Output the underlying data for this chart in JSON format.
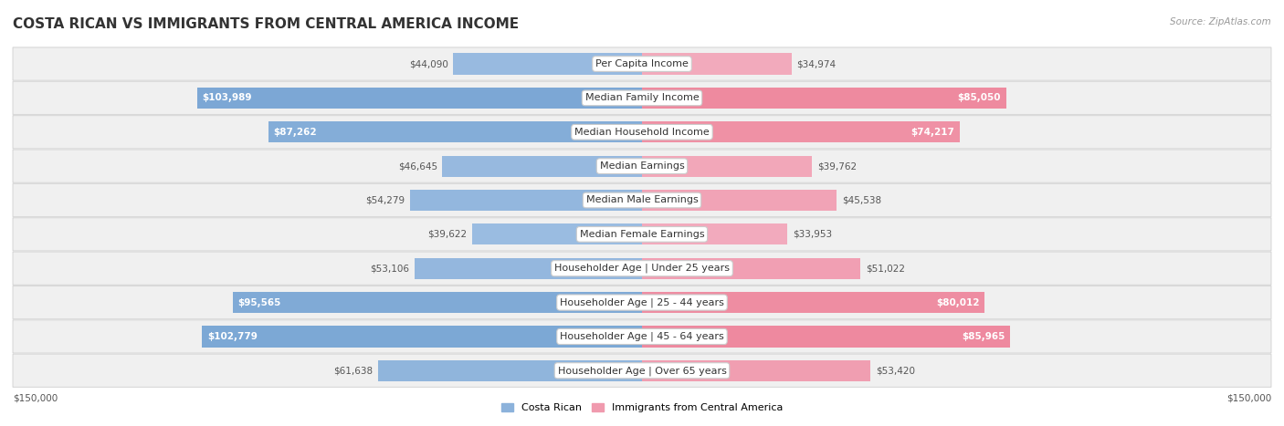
{
  "title": "COSTA RICAN VS IMMIGRANTS FROM CENTRAL AMERICA INCOME",
  "source": "Source: ZipAtlas.com",
  "categories": [
    "Per Capita Income",
    "Median Family Income",
    "Median Household Income",
    "Median Earnings",
    "Median Male Earnings",
    "Median Female Earnings",
    "Householder Age | Under 25 years",
    "Householder Age | 25 - 44 years",
    "Householder Age | 45 - 64 years",
    "Householder Age | Over 65 years"
  ],
  "costa_rican": [
    44090,
    103989,
    87262,
    46645,
    54279,
    39622,
    53106,
    95565,
    102779,
    61638
  ],
  "immigrants": [
    34974,
    85050,
    74217,
    39762,
    45538,
    33953,
    51022,
    80012,
    85965,
    53420
  ],
  "max_val": 150000,
  "blue_light": "#adc8e8",
  "blue_dark": "#6699cc",
  "pink_light": "#f5c0d0",
  "pink_dark": "#e8607a",
  "label_blue": "Costa Rican",
  "label_pink": "Immigrants from Central America",
  "bar_height": 0.62,
  "title_fontsize": 11,
  "cat_fontsize": 8,
  "value_fontsize": 7.5,
  "source_fontsize": 7.5,
  "inside_threshold": 65000
}
